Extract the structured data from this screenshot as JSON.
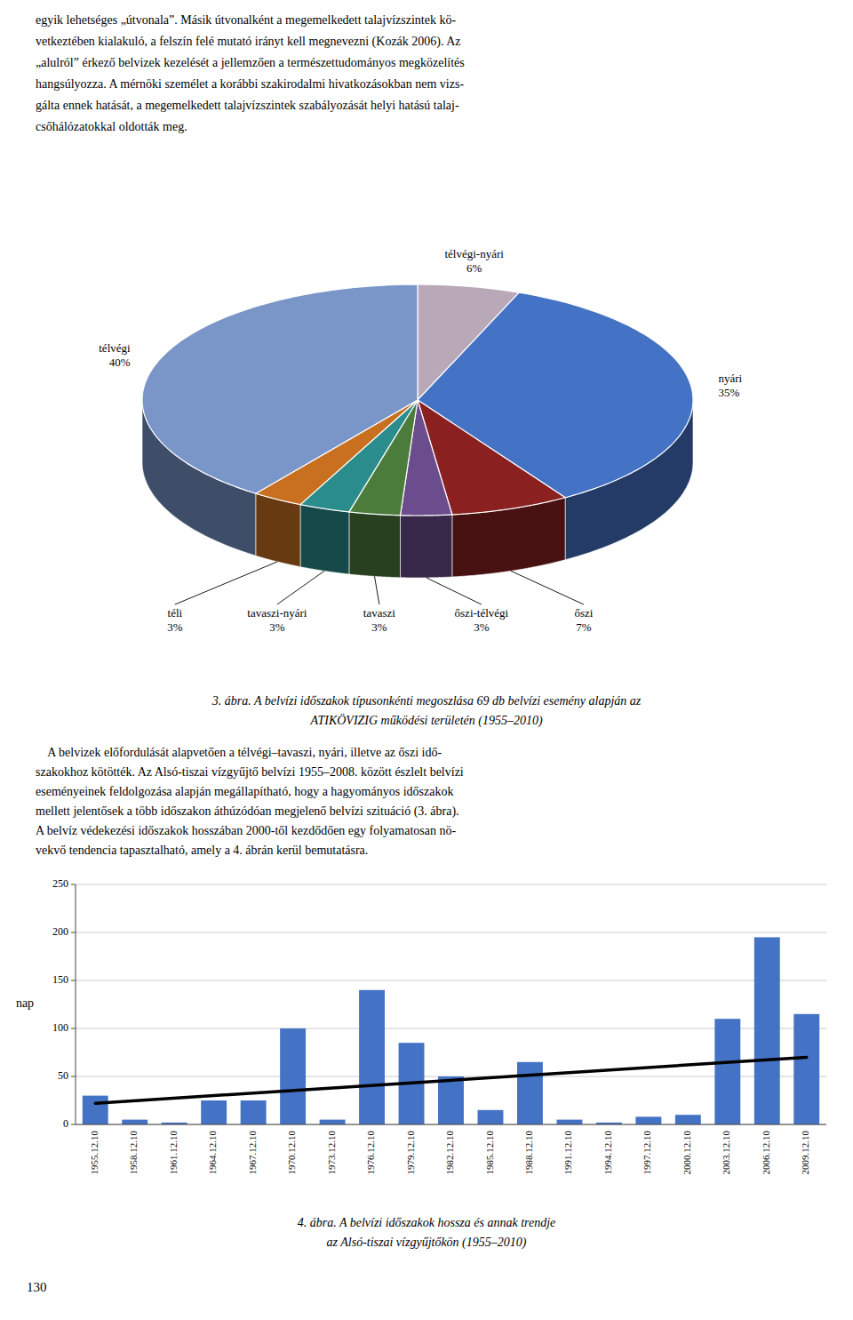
{
  "page_text": {
    "header_lines": [
      "egyik lehetséges „útvonala”. Másik útvonalként a megemelkedett talajvízszintek kö-",
      "vetkeztében kialakuló, a felszín felé mutató irányt kell megnevezni (Kozák 2006). Az",
      "„alulról” érkező belvizek kezelését a jellemzően a természettudományos megközelítés",
      "hangsúlyozza. A mérnöki személet a korábbi szakirodalmi hivatkozásokban nem vizs-",
      "gálta ennek hatását, a megemelkedett talajvízszintek szabályozását helyi hatású talaj-",
      "csőhálózatokkal oldották meg."
    ],
    "middle_lines": [
      "    A belvizek előfordulását alapvetően a télvégi–tavaszi, nyári, illetve az őszi idő-",
      "szakokhoz kötötték. Az Alsó-tiszai vízgyűjtő belvízi 1955–2008. között észlelt belvízi",
      "eseményeinek feldolgozása alapján megállapítható, hogy a hagyományos időszakok",
      "mellett jelentősek a több időszakon áthúzódóan megjelenő belvízi szituáció (3. ábra).",
      "A belvíz védekezési időszakok hosszában 2000-től kezdődően egy folyamatosan nö-",
      "vekvő tendencia tapasztalható, amely a 4. ábrán kerül bemutatásra."
    ],
    "page_number": "130"
  },
  "chart_data": [
    {
      "type": "pie",
      "title": "3. ábra. A belvízi időszakok típusonkénti megoszlása 69 db belvízi esemény alapján az",
      "subtitle": "ATIKÖVIZIG működési területén (1955–2010)",
      "categories": [
        "télvégi-nyári",
        "nyári",
        "őszi",
        "őszi-télvégi",
        "tavaszi",
        "tavaszi-nyári",
        "téli",
        "télvégi"
      ],
      "values": [
        6,
        35,
        7,
        3,
        3,
        3,
        3,
        40
      ],
      "value_labels": [
        "6%",
        "35%",
        "7%",
        "3%",
        "3%",
        "3%",
        "3%",
        "40%"
      ],
      "colors": [
        "#b8a8b8",
        "#4472c4",
        "#8b2020",
        "#6b4c8c",
        "#4c7c3c",
        "#2b8c8c",
        "#c87020",
        "#7a96c8"
      ],
      "data_labels": true
    },
    {
      "type": "bar",
      "title": "4. ábra. A belvízi időszakok hossza és annak trendje",
      "subtitle": "az Alsó-tiszai vízgyűjtőkön (1955–2010)",
      "categories": [
        "1955.12.10",
        "1958.12.10",
        "1961.12.10",
        "1964.12.10",
        "1967.12.10",
        "1970.12.10",
        "1973.12.10",
        "1976.12.10",
        "1979.12.10",
        "1982.12.10",
        "1985.12.10",
        "1988.12.10",
        "1991.12.10",
        "1994.12.10",
        "1997.12.10",
        "2000.12.10",
        "2003.12.10",
        "2006.12.10",
        "2009.12.10"
      ],
      "values": [
        30,
        5,
        2,
        25,
        25,
        100,
        5,
        140,
        85,
        50,
        15,
        65,
        5,
        2,
        8,
        10,
        110,
        195,
        115
      ],
      "color": "#4472c4",
      "ylabel": "nap",
      "ylim": [
        0,
        250
      ],
      "yticks": [
        0,
        50,
        100,
        150,
        200,
        250
      ],
      "grid": true,
      "trend": {
        "start": 22,
        "end": 70,
        "color": "#000000"
      }
    }
  ]
}
